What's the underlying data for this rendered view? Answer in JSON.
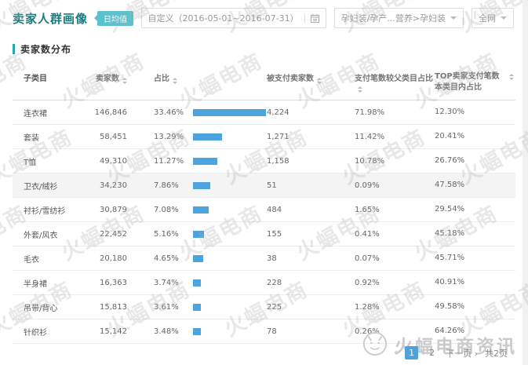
{
  "header": {
    "title": "卖家人群画像",
    "badge": "日均值",
    "date_range": "自定义（2016-05-01~2016-07-31）",
    "category_filter": "孕妇装/孕产...营养>孕妇装",
    "scope_filter": "全网"
  },
  "section": {
    "title": "卖家数分布"
  },
  "table": {
    "columns": [
      {
        "label": "子类目"
      },
      {
        "label": "卖家数"
      },
      {
        "label": "占比"
      },
      {
        "label": ""
      },
      {
        "label": "被支付卖家数"
      },
      {
        "label": "支付笔数较父类目占比"
      },
      {
        "label": "TOP卖家支付笔数本类目内占比"
      }
    ],
    "rows": [
      {
        "name": "连衣裙",
        "sellers": "146,846",
        "share": "33.46%",
        "share_pct": 33.46,
        "paid": "4,224",
        "pay_ratio": "71.98%",
        "top_ratio": "12.30%",
        "highlight": false
      },
      {
        "name": "套装",
        "sellers": "58,451",
        "share": "13.29%",
        "share_pct": 13.29,
        "paid": "1,271",
        "pay_ratio": "11.42%",
        "top_ratio": "20.41%",
        "highlight": false
      },
      {
        "name": "T恤",
        "sellers": "49,310",
        "share": "11.27%",
        "share_pct": 11.27,
        "paid": "1,158",
        "pay_ratio": "10.78%",
        "top_ratio": "26.76%",
        "highlight": false
      },
      {
        "name": "卫衣/绒衫",
        "sellers": "34,230",
        "share": "7.86%",
        "share_pct": 7.86,
        "paid": "51",
        "pay_ratio": "0.09%",
        "top_ratio": "47.58%",
        "highlight": true
      },
      {
        "name": "衬衫/雪纺衫",
        "sellers": "30,879",
        "share": "7.08%",
        "share_pct": 7.08,
        "paid": "484",
        "pay_ratio": "1.65%",
        "top_ratio": "29.54%",
        "highlight": false
      },
      {
        "name": "外套/风衣",
        "sellers": "22,452",
        "share": "5.16%",
        "share_pct": 5.16,
        "paid": "155",
        "pay_ratio": "0.41%",
        "top_ratio": "45.18%",
        "highlight": false
      },
      {
        "name": "毛衣",
        "sellers": "20,180",
        "share": "4.65%",
        "share_pct": 4.65,
        "paid": "38",
        "pay_ratio": "0.07%",
        "top_ratio": "45.71%",
        "highlight": false
      },
      {
        "name": "半身裙",
        "sellers": "16,363",
        "share": "3.74%",
        "share_pct": 3.74,
        "paid": "228",
        "pay_ratio": "0.92%",
        "top_ratio": "40.91%",
        "highlight": false
      },
      {
        "name": "吊带/背心",
        "sellers": "15,813",
        "share": "3.61%",
        "share_pct": 3.61,
        "paid": "225",
        "pay_ratio": "1.28%",
        "top_ratio": "49.58%",
        "highlight": false
      },
      {
        "name": "针织衫",
        "sellers": "15,142",
        "share": "3.48%",
        "share_pct": 3.48,
        "paid": "78",
        "pay_ratio": "0.26%",
        "top_ratio": "64.26%",
        "highlight": false
      }
    ]
  },
  "chart_data": {
    "type": "bar",
    "categories": [
      "连衣裙",
      "套装",
      "T恤",
      "卫衣/绒衫",
      "衬衫/雪纺衫",
      "外套/风衣",
      "毛衣",
      "半身裙",
      "吊带/背心",
      "针织衫"
    ],
    "values": [
      33.46,
      13.29,
      11.27,
      7.86,
      7.08,
      5.16,
      4.65,
      3.74,
      3.61,
      3.48
    ],
    "title": "占比",
    "xlabel": "子类目",
    "ylabel": "占比 (%)",
    "ylim": [
      0,
      35
    ],
    "legend": false
  },
  "pagination": {
    "prev": "‹",
    "page1": "1",
    "page2": "2",
    "next": "下一页 ›",
    "total": "共2页"
  },
  "watermark": {
    "text": "火蝠电商"
  },
  "footer": {
    "brand": "火蝠电商资讯"
  },
  "colors": {
    "accent_teal": "#58c3cf",
    "title_teal": "#1b7a7d",
    "bar_blue": "#4da3dc",
    "active_page": "#4da3dc"
  }
}
